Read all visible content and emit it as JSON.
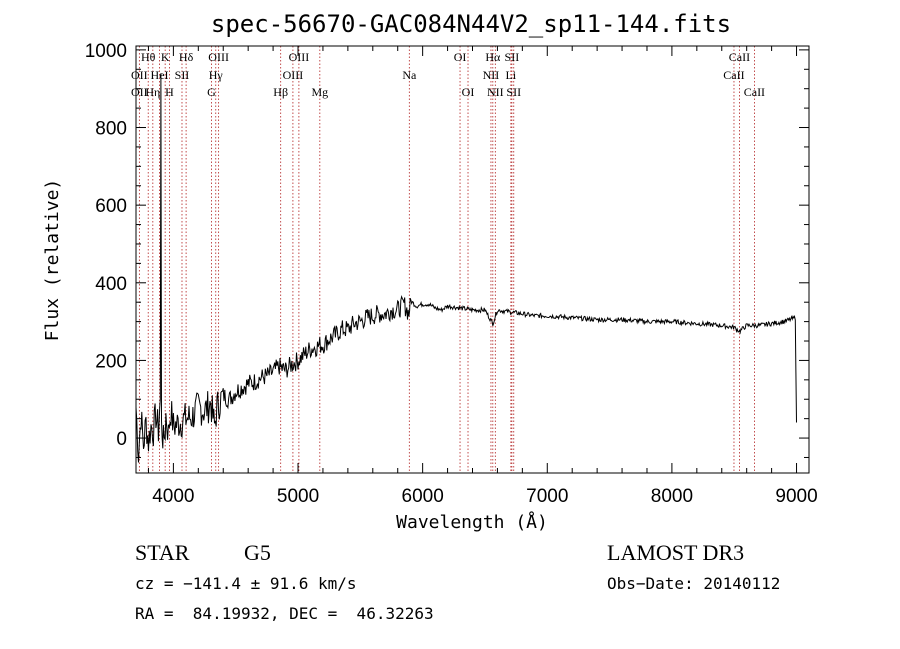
{
  "chart_data": {
    "type": "line",
    "title": "spec-56670-GAC084N44V2_sp11-144.fits",
    "xlabel": "Wavelength (Å)",
    "ylabel": "Flux (relative)",
    "xlim": [
      3700,
      9100
    ],
    "ylim": [
      -90,
      1010
    ],
    "xticks": [
      4000,
      5000,
      6000,
      7000,
      8000,
      9000
    ],
    "yticks": [
      0,
      200,
      400,
      600,
      800,
      1000
    ],
    "series": [
      {
        "name": "flux",
        "x": [
          3700,
          3720,
          3740,
          3760,
          3780,
          3800,
          3820,
          3840,
          3860,
          3880,
          3895,
          3900,
          3905,
          3920,
          3934,
          3940,
          3960,
          3968,
          3980,
          4000,
          4050,
          4100,
          4150,
          4200,
          4250,
          4300,
          4330,
          4350,
          4400,
          4450,
          4500,
          4550,
          4600,
          4650,
          4700,
          4750,
          4800,
          4850,
          4861,
          4900,
          4950,
          5000,
          5050,
          5100,
          5150,
          5175,
          5200,
          5250,
          5300,
          5350,
          5400,
          5450,
          5500,
          5550,
          5600,
          5650,
          5700,
          5750,
          5800,
          5850,
          5890,
          5900,
          5950,
          6000,
          6050,
          6100,
          6150,
          6200,
          6300,
          6400,
          6500,
          6563,
          6600,
          6700,
          6800,
          6900,
          7000,
          7200,
          7400,
          7600,
          7800,
          8000,
          8200,
          8400,
          8500,
          8542,
          8600,
          8662,
          8700,
          8800,
          8900,
          8990,
          9000
        ],
        "y": [
          80,
          -40,
          60,
          -20,
          40,
          -10,
          30,
          20,
          60,
          20,
          100,
          940,
          30,
          -10,
          20,
          60,
          10,
          40,
          70,
          30,
          40,
          50,
          55,
          80,
          70,
          90,
          30,
          80,
          110,
          100,
          120,
          130,
          140,
          145,
          155,
          160,
          170,
          185,
          180,
          175,
          190,
          200,
          215,
          230,
          235,
          240,
          240,
          255,
          265,
          280,
          280,
          295,
          300,
          310,
          315,
          320,
          320,
          330,
          330,
          345,
          320,
          355,
          340,
          345,
          345,
          335,
          330,
          340,
          335,
          330,
          330,
          295,
          330,
          325,
          320,
          315,
          315,
          310,
          305,
          305,
          300,
          300,
          295,
          290,
          285,
          275,
          290,
          290,
          290,
          295,
          300,
          310,
          40
        ]
      }
    ],
    "line_labels": [
      {
        "label": "Hθ",
        "wave": 3798,
        "row": 1
      },
      {
        "label": "OII",
        "wave": 3727,
        "row": 2
      },
      {
        "label": "OII",
        "wave": 3727,
        "row": 3
      },
      {
        "label": "K",
        "wave": 3934,
        "row": 1
      },
      {
        "label": "HeI",
        "wave": 3889,
        "row": 2
      },
      {
        "label": "Hη",
        "wave": 3835,
        "row": 3
      },
      {
        "label": "H",
        "wave": 3968,
        "row": 3
      },
      {
        "label": "Hδ",
        "wave": 4102,
        "row": 1
      },
      {
        "label": "SII",
        "wave": 4069,
        "row": 2
      },
      {
        "label": "OIII",
        "wave": 4363,
        "row": 1
      },
      {
        "label": "Hγ",
        "wave": 4340,
        "row": 2
      },
      {
        "label": "G",
        "wave": 4305,
        "row": 3
      },
      {
        "label": "OIII",
        "wave": 5007,
        "row": 1
      },
      {
        "label": "OIII",
        "wave": 4959,
        "row": 2
      },
      {
        "label": "Hβ",
        "wave": 4861,
        "row": 3
      },
      {
        "label": "Mg",
        "wave": 5175,
        "row": 3
      },
      {
        "label": "Na",
        "wave": 5893,
        "row": 2
      },
      {
        "label": "OI",
        "wave": 6300,
        "row": 1
      },
      {
        "label": "OI",
        "wave": 6364,
        "row": 3
      },
      {
        "label": "Hα",
        "wave": 6563,
        "row": 1
      },
      {
        "label": "SII",
        "wave": 6716,
        "row": 1
      },
      {
        "label": "NII",
        "wave": 6548,
        "row": 2
      },
      {
        "label": "Li",
        "wave": 6708,
        "row": 2
      },
      {
        "label": "NII",
        "wave": 6583,
        "row": 3
      },
      {
        "label": "SII",
        "wave": 6731,
        "row": 3
      },
      {
        "label": "CaII",
        "wave": 8542,
        "row": 1
      },
      {
        "label": "CaII",
        "wave": 8498,
        "row": 2
      },
      {
        "label": "CaII",
        "wave": 8662,
        "row": 3
      }
    ],
    "line_waves": [
      3727,
      3798,
      3835,
      3889,
      3934,
      3968,
      4069,
      4102,
      4305,
      4340,
      4363,
      4861,
      4959,
      5007,
      5175,
      5893,
      6300,
      6364,
      6548,
      6563,
      6583,
      6708,
      6716,
      6731,
      8498,
      8542,
      8662
    ],
    "colors": {
      "spectrum": "#000000",
      "line_marker": "#b22222"
    }
  },
  "info": {
    "object_class": "STAR",
    "subclass": "G5",
    "survey": "LAMOST DR3",
    "redshift": "cz = −141.4 ± 91.6 km/s",
    "obs_date": "Obs−Date: 20140112",
    "coords": "RA =  84.19932, DEC =  46.32263"
  }
}
